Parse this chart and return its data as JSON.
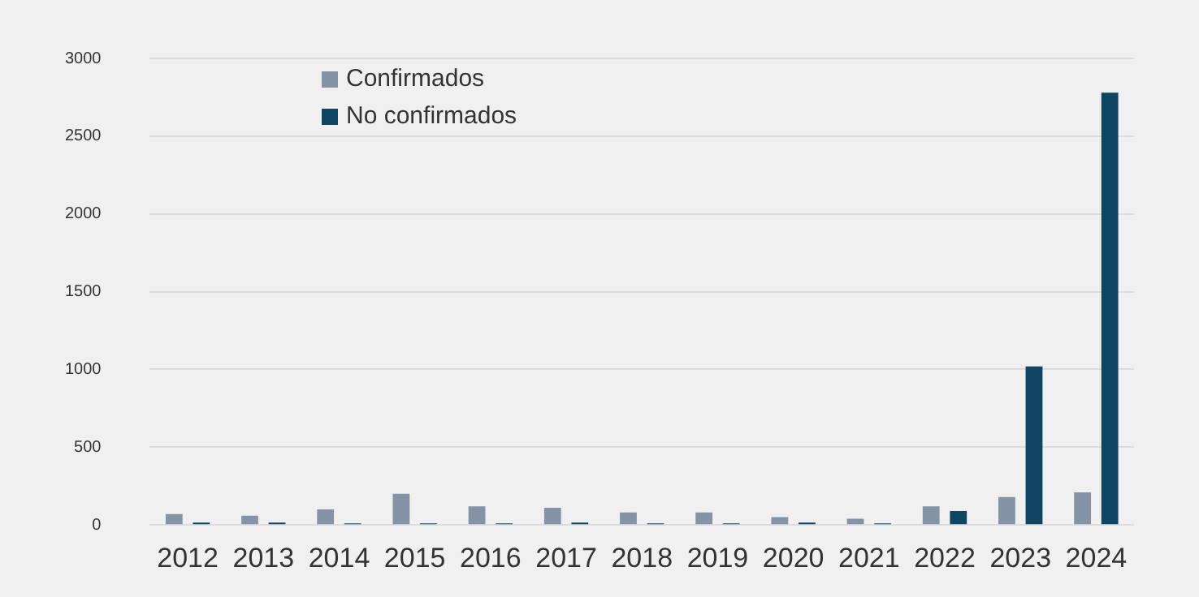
{
  "chart_data": {
    "type": "bar",
    "categories": [
      "2012",
      "2013",
      "2014",
      "2015",
      "2016",
      "2017",
      "2018",
      "2019",
      "2020",
      "2021",
      "2022",
      "2023",
      "2024"
    ],
    "series": [
      {
        "name": "Confirmados",
        "color": "#8494a6",
        "values": [
          70,
          60,
          100,
          200,
          120,
          110,
          80,
          80,
          50,
          40,
          120,
          180,
          210
        ]
      },
      {
        "name": "No confirmados",
        "color": "#0f4563",
        "values": [
          15,
          15,
          10,
          10,
          10,
          15,
          10,
          10,
          15,
          10,
          90,
          1020,
          2780
        ]
      }
    ],
    "ylim": [
      0,
      3000
    ],
    "yticks": [
      0,
      500,
      1000,
      1500,
      2000,
      2500,
      3000
    ],
    "grid": "y",
    "legend": "top left"
  }
}
